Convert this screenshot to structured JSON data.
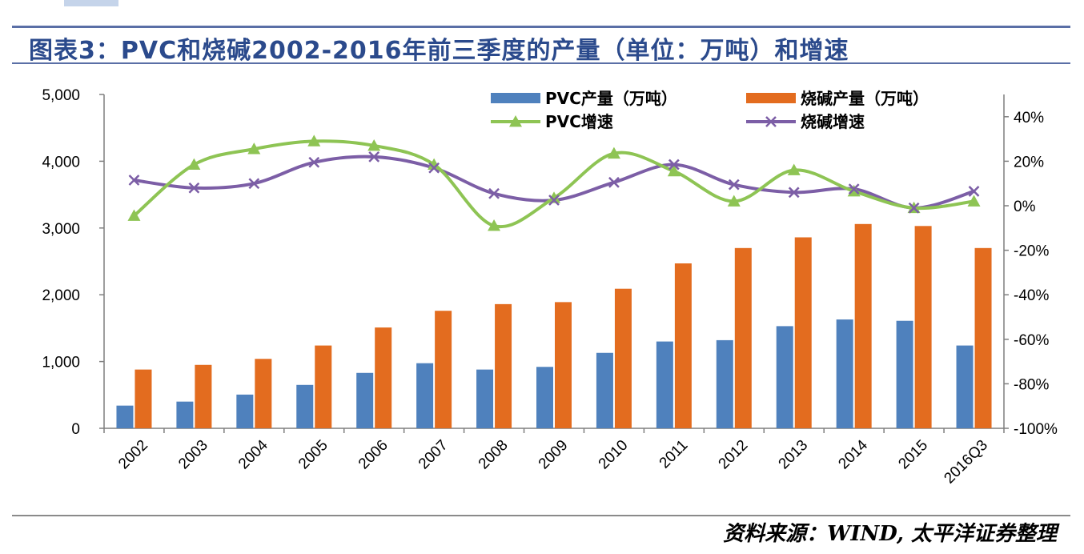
{
  "header": {
    "title": "图表3：PVC和烧碱2002-2016年前三季度的产量（单位：万吨）和增速"
  },
  "footer": {
    "source": "资料来源：WIND, 太平洋证券整理"
  },
  "colors": {
    "pvc_bar": "#4f81bd",
    "caustic_bar": "#e36c1f",
    "pvc_line": "#8ec454",
    "caustic_line": "#7c5ea6",
    "title": "#2b4a8c",
    "rule": "#5a6fa6"
  },
  "chart_data": {
    "type": "bar",
    "title": "PVC和烧碱2002-2016年前三季度的产量（单位：万吨）和增速",
    "categories": [
      "2002",
      "2003",
      "2004",
      "2005",
      "2006",
      "2007",
      "2008",
      "2009",
      "2010",
      "2011",
      "2012",
      "2013",
      "2014",
      "2015",
      "2016Q3"
    ],
    "series": [
      {
        "name": "PVC产量（万吨）",
        "kind": "bar",
        "axis": "left",
        "values": [
          340,
          400,
          505,
          650,
          830,
          975,
          880,
          920,
          1130,
          1300,
          1320,
          1530,
          1630,
          1610,
          1240
        ]
      },
      {
        "name": "烧碱产量（万吨）",
        "kind": "bar",
        "axis": "left",
        "values": [
          880,
          950,
          1040,
          1240,
          1510,
          1760,
          1860,
          1890,
          2090,
          2470,
          2700,
          2860,
          3060,
          3030,
          2700
        ]
      },
      {
        "name": "PVC增速",
        "kind": "line",
        "axis": "right",
        "marker": "triangle",
        "values": [
          -4.5,
          18.5,
          25.5,
          29,
          27,
          18.5,
          -9,
          3.5,
          23.5,
          15.5,
          2,
          16,
          6.5,
          -1,
          2
        ]
      },
      {
        "name": "烧碱增速",
        "kind": "line",
        "axis": "right",
        "marker": "x",
        "values": [
          11.5,
          8,
          10,
          19.5,
          22,
          17,
          5.5,
          2.5,
          10.5,
          18.5,
          9.5,
          6,
          7.5,
          -1,
          6.5
        ]
      }
    ],
    "ylim_left": [
      0,
      5000
    ],
    "yticks_left": [
      "0",
      "1,000",
      "2,000",
      "3,000",
      "4,000",
      "5,000"
    ],
    "ylim_right": [
      -100,
      50
    ],
    "yticks_right": [
      "-100%",
      "-80%",
      "-60%",
      "-40%",
      "-20%",
      "0%",
      "20%",
      "40%"
    ],
    "xlabel": "",
    "ylabel": "",
    "legend": [
      "PVC产量（万吨）",
      "烧碱产量（万吨）",
      "PVC增速",
      "烧碱增速"
    ],
    "legend_position": "top",
    "grid": false
  }
}
